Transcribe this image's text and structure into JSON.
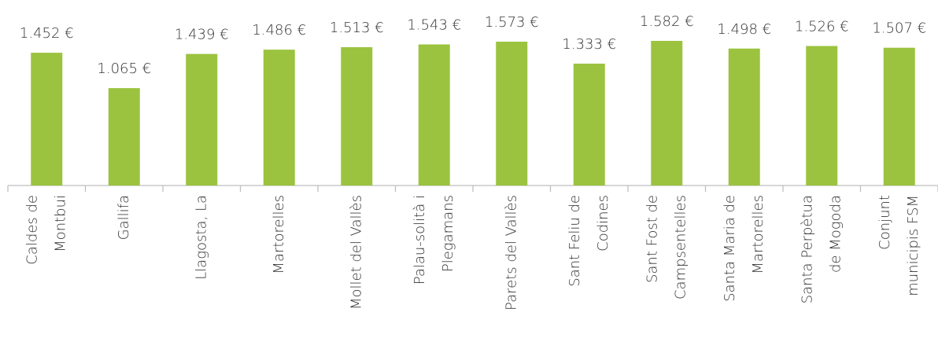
{
  "chart_data": {
    "type": "bar",
    "color": "#9bc33f",
    "categories": [
      [
        "Caldes de",
        "Montbui"
      ],
      [
        "Gallifa"
      ],
      [
        "Llagosta, La"
      ],
      [
        "Martorelles"
      ],
      [
        "Mollet del Vallès"
      ],
      [
        "Palau-solità i",
        "Plegamans"
      ],
      [
        "Parets del Vallès"
      ],
      [
        "Sant Feliu de",
        "Codines"
      ],
      [
        "Sant Fost de",
        "Campsentelles"
      ],
      [
        "Santa Maria de",
        "Martorelles"
      ],
      [
        "Santa Perpètua",
        "de Mogoda"
      ],
      [
        "Conjunt",
        "municipis FSM"
      ]
    ],
    "values": [
      1452,
      1065,
      1439,
      1486,
      1513,
      1543,
      1573,
      1333,
      1582,
      1498,
      1526,
      1507
    ],
    "value_labels": [
      "1.452 €",
      "1.065 €",
      "1.439 €",
      "1.486 €",
      "1.513 €",
      "1.543 €",
      "1.573 €",
      "1.333 €",
      "1.582 €",
      "1.498 €",
      "1.526 €",
      "1.507 €"
    ]
  }
}
